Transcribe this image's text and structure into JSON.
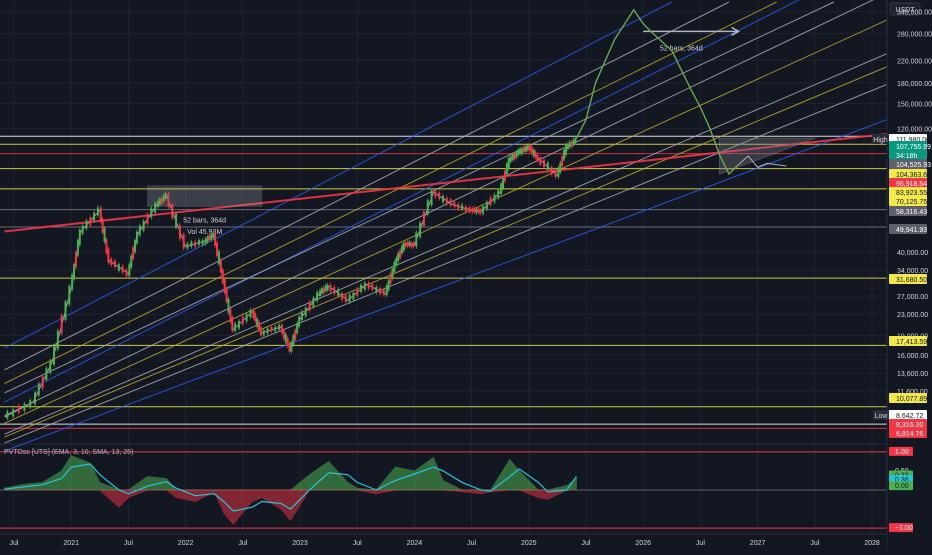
{
  "chart_data": {
    "type": "line",
    "title": "",
    "currency": "USDT",
    "scale": "log",
    "price_ylim": [
      7500,
      370000
    ],
    "x_ticks": [
      "Jul",
      "2021",
      "Jul",
      "2022",
      "Jul",
      "2023",
      "Jul",
      "2024",
      "Jul",
      "2025",
      "Jul",
      "2026",
      "Jul",
      "2027",
      "Jul",
      "2028"
    ],
    "y_ticks": [
      340000,
      280000,
      220000,
      180000,
      150000,
      120000,
      40000,
      34000,
      27000,
      23000,
      19000,
      16000,
      13600,
      11600
    ],
    "y_tick_labels": [
      "340,000.00",
      "280,000.00",
      "220,000.00",
      "180,000.00",
      "150,000.00",
      "120,000.00",
      "40,000.00",
      "34,000.00",
      "27,000.00",
      "23,000.00",
      "19,000.00",
      "16,000.00",
      "13,600.00",
      "11,600.00"
    ],
    "price_series": {
      "x": [
        "2020-06",
        "2020-09",
        "2020-11",
        "2021-01",
        "2021-02",
        "2021-04",
        "2021-05",
        "2021-07",
        "2021-08",
        "2021-10",
        "2021-11",
        "2022-01",
        "2022-03",
        "2022-04",
        "2022-05",
        "2022-06",
        "2022-08",
        "2022-09",
        "2022-11",
        "2022-12",
        "2023-01",
        "2023-03",
        "2023-04",
        "2023-06",
        "2023-08",
        "2023-10",
        "2023-11",
        "2023-12",
        "2024-01",
        "2024-03",
        "2024-05",
        "2024-07",
        "2024-08",
        "2024-10",
        "2024-11",
        "2024-12",
        "2025-01",
        "2025-02",
        "2025-04",
        "2025-05",
        "2025-06"
      ],
      "y": [
        9200,
        10500,
        15000,
        29000,
        48000,
        58000,
        37000,
        33000,
        47000,
        61000,
        66000,
        42000,
        44000,
        46500,
        31000,
        20000,
        23500,
        19500,
        20500,
        16800,
        22000,
        27500,
        29500,
        26000,
        30000,
        27500,
        36000,
        43000,
        42500,
        68000,
        61000,
        58000,
        57500,
        68000,
        91000,
        97000,
        102000,
        92000,
        79000,
        102000,
        108000
      ]
    },
    "projection_series": {
      "name": "",
      "x": [
        "2025-06",
        "2025-07",
        "2025-08",
        "2025-10",
        "2025-12",
        "2026-01",
        "2026-02",
        "2026-04",
        "2026-06",
        "2026-07",
        "2026-08",
        "2026-09",
        "2026-10",
        "2026-11"
      ],
      "y": [
        110000,
        130000,
        180000,
        265000,
        345000,
        305000,
        280000,
        240000,
        170000,
        145000,
        120000,
        95000,
        80000,
        87000
      ]
    },
    "channel_lines": {
      "blue": [
        [
          [
            "2020-06",
            17000
          ],
          [
            "2026-04",
            370000
          ]
        ],
        [
          [
            "2020-06",
            10500
          ],
          [
            "2028-06",
            650000
          ]
        ],
        [
          [
            "2020-06",
            6800
          ],
          [
            "2028-06",
            145000
          ]
        ]
      ],
      "white": [
        [
          [
            "2020-06",
            14000
          ],
          [
            "2026-10",
            370000
          ]
        ],
        [
          [
            "2020-06",
            11400
          ],
          [
            "2027-09",
            370000
          ]
        ],
        [
          [
            "2020-06",
            9300
          ],
          [
            "2028-06",
            460000
          ]
        ],
        [
          [
            "2020-06",
            7900
          ],
          [
            "2028-06",
            265000
          ]
        ],
        [
          [
            "2020-06",
            7300
          ],
          [
            "2028-06",
            200000
          ]
        ]
      ],
      "yellow": [
        [
          [
            "2020-06",
            12400
          ],
          [
            "2027-03",
            370000
          ]
        ],
        [
          [
            "2020-06",
            8700
          ],
          [
            "2028-06",
            360000
          ]
        ],
        [
          [
            "2020-06",
            7700
          ],
          [
            "2028-06",
            235000
          ]
        ]
      ]
    },
    "trendlines_red": [
      [
        [
          "2020-06",
          48000
        ],
        [
          "2028-06",
          118000
        ]
      ]
    ],
    "horizontal_levels": [
      {
        "label": "111,980.00",
        "value": 111980,
        "color": "#ffffff"
      },
      {
        "label": "104,363.62",
        "value": 104363.62,
        "color": "#f2e84b"
      },
      {
        "label": "95,918.54",
        "value": 95918.54,
        "color": "#f23645"
      },
      {
        "label": "83,923.55",
        "value": 83923.55,
        "color": "#f2e84b"
      },
      {
        "label": "70,125.75",
        "value": 70125.75,
        "color": "#f2e84b"
      },
      {
        "label": "58,316.43",
        "value": 58316.43,
        "color": "#787b86"
      },
      {
        "label": "49,941.93",
        "value": 49941.93,
        "color": "#787b86"
      },
      {
        "label": "31,680.50",
        "value": 31680.5,
        "color": "#f2e84b"
      },
      {
        "label": "17,413.59",
        "value": 17413.59,
        "color": "#f2e84b"
      },
      {
        "label": "10,077.89",
        "value": 10077.89,
        "color": "#f2e84b"
      },
      {
        "label": "8,642.72",
        "value": 8642.72,
        "color": "#ffffff"
      },
      {
        "label": "8,316.20",
        "value": 8316.2,
        "color": "#f23645"
      },
      {
        "label": "6,814.76",
        "value": 6814.76,
        "color": "#f23645"
      }
    ],
    "price_tags_extra": [
      {
        "label": "107,755.99",
        "value": 107755.99
      },
      {
        "label": "34:18h",
        "value": 107755.99
      },
      {
        "label": "104,525.93",
        "value": 104525.93
      }
    ],
    "hl_labels": {
      "high": "High",
      "low": "Low"
    },
    "annotations": {
      "bars_2021": "52 bars, 364d",
      "vol_2021": "Vol 45.93M",
      "bars_2026": "52 bars, 364d"
    },
    "oscillator": {
      "label": "PVTOsc [UTS] (EMA, 3, 10, SMA, 13, 25)",
      "ylim": [
        -1.1,
        1.1
      ],
      "ticks": [
        "1.00",
        "0.50",
        "0.33",
        "0.36",
        "0.00",
        "−1.00"
      ],
      "x": [
        "2020-06",
        "2020-08",
        "2020-10",
        "2020-12",
        "2021-01",
        "2021-03",
        "2021-04",
        "2021-06",
        "2021-07",
        "2021-09",
        "2021-11",
        "2021-12",
        "2022-02",
        "2022-04",
        "2022-05",
        "2022-06",
        "2022-08",
        "2022-09",
        "2022-11",
        "2022-12",
        "2023-02",
        "2023-04",
        "2023-06",
        "2023-07",
        "2023-09",
        "2023-11",
        "2024-01",
        "2024-03",
        "2024-04",
        "2024-06",
        "2024-08",
        "2024-09",
        "2024-11",
        "2024-12",
        "2025-02",
        "2025-03",
        "2025-05",
        "2025-06"
      ],
      "hist": [
        0.05,
        0.15,
        0.2,
        0.5,
        0.9,
        0.7,
        0.2,
        -0.45,
        -0.2,
        0.35,
        0.3,
        -0.2,
        -0.3,
        -0.05,
        -0.6,
        -0.9,
        -0.3,
        -0.2,
        -0.5,
        -0.8,
        0.4,
        0.75,
        0.2,
        0.05,
        -0.1,
        0.6,
        0.5,
        0.85,
        0.25,
        -0.05,
        -0.1,
        -0.05,
        0.8,
        0.5,
        -0.2,
        -0.25,
        0.12,
        0.3
      ],
      "signal": [
        0.02,
        0.08,
        0.14,
        0.3,
        0.6,
        0.68,
        0.4,
        0.0,
        -0.1,
        0.1,
        0.22,
        0.05,
        -0.15,
        -0.1,
        -0.3,
        -0.55,
        -0.45,
        -0.3,
        -0.35,
        -0.5,
        0.0,
        0.45,
        0.4,
        0.2,
        0.0,
        0.25,
        0.42,
        0.6,
        0.5,
        0.2,
        0.0,
        -0.03,
        0.35,
        0.55,
        0.2,
        -0.05,
        0.0,
        0.36
      ]
    }
  },
  "colors": {
    "background": "#131722",
    "grid": "#1f2331",
    "blue": "#2962ff",
    "white": "#b2b5be",
    "yellow": "#c9b12a",
    "red": "#f23645",
    "green": "#4caf50",
    "projection": "#6aa84f",
    "axis_text": "#d1d4dc",
    "osc_signal": "#26c6da"
  }
}
